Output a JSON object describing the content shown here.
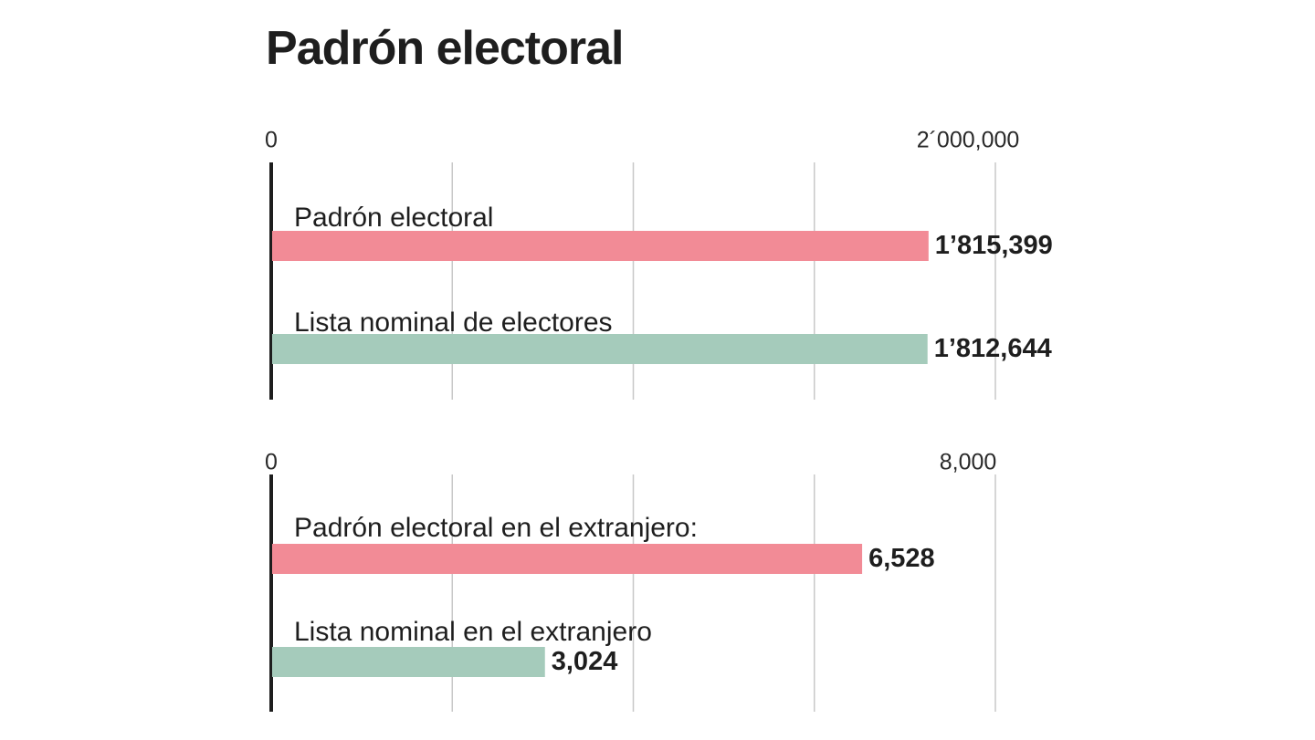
{
  "title": "Padrón electoral",
  "colors": {
    "pink": "#f28b96",
    "green": "#a5cbbb",
    "grid": "#c8c8c8",
    "axis": "#1e1e1e"
  },
  "chart_data": [
    {
      "type": "bar",
      "orientation": "horizontal",
      "title": "",
      "xlim": [
        0,
        2000000
      ],
      "ticks": [
        {
          "value": 0,
          "label": "0"
        },
        {
          "value": 2000000,
          "label": "2´000,000"
        }
      ],
      "gridlines": [
        500000,
        1000000,
        1500000,
        2000000
      ],
      "bars": [
        {
          "category": "Padrón electoral",
          "value": 1815399,
          "value_label": "1’815,399",
          "color": "pink"
        },
        {
          "category": "Lista nominal de electores",
          "value": 1812644,
          "value_label": "1’812,644",
          "color": "green"
        }
      ]
    },
    {
      "type": "bar",
      "orientation": "horizontal",
      "title": "",
      "xlim": [
        0,
        8000
      ],
      "ticks": [
        {
          "value": 0,
          "label": "0"
        },
        {
          "value": 8000,
          "label": "8,000"
        }
      ],
      "gridlines": [
        2000,
        4000,
        6000,
        8000
      ],
      "bars": [
        {
          "category": "Padrón electoral en el extranjero:",
          "value": 6528,
          "value_label": "6,528",
          "color": "pink"
        },
        {
          "category": "Lista nominal en el extranjero",
          "value": 3024,
          "value_label": "3,024",
          "color": "green"
        }
      ]
    }
  ]
}
